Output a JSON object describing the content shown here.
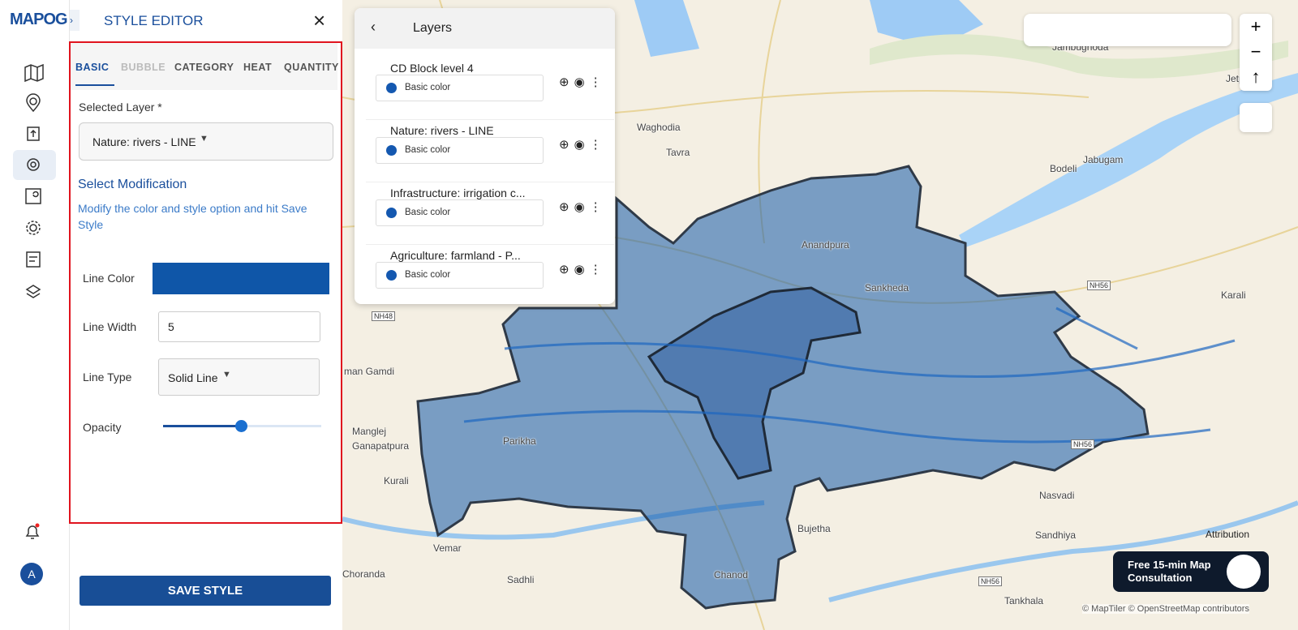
{
  "app": {
    "logo": "MAPOG"
  },
  "editor": {
    "title": "STYLE EDITOR",
    "tabs": [
      "BASIC",
      "BUBBLE",
      "CATEGORY",
      "HEAT",
      "QUANTITY"
    ],
    "selected_layer_label": "Selected Layer *",
    "selected_layer": "Nature: rivers - LINE",
    "section_title": "Select Modification",
    "hint": "Modify the color and style option and hit Save Style",
    "line_color_label": "Line Color",
    "line_width_label": "Line Width",
    "line_width": 5,
    "line_type_label": "Line Type",
    "line_type": "Solid Line",
    "opacity_label": "Opacity",
    "save": "SAVE STYLE"
  },
  "layers": {
    "title": "Layers",
    "items": [
      {
        "name": "CD Block level 4",
        "color_label": "Basic color"
      },
      {
        "name": "Nature: rivers - LINE",
        "color_label": "Basic color"
      },
      {
        "name": "Infrastructure: irrigation c...",
        "color_label": "Basic color"
      },
      {
        "name": "Agriculture: farmland - P...",
        "color_label": "Basic color"
      }
    ]
  },
  "map": {
    "labels": [
      "Waghodia",
      "Tavra",
      "Bodeli",
      "Jabugam",
      "Anandpura",
      "Sankheda",
      "Karali",
      "Jetpur P",
      "Jambughoda",
      "man Gamdi",
      "Manglej",
      "Ganapatpura",
      "Parikha",
      "Kurali",
      "Vemar",
      "Chorandа",
      "Sadhli",
      "Chanod",
      "Bujetha",
      "Nasvadi",
      "Sandhiya",
      "Tankhala"
    ],
    "road_badges": [
      "NH56",
      "NH48",
      "NH56",
      "NH56"
    ],
    "attribution": "Attribution",
    "copyright": "© MapTiler © OpenStreetMap contributors",
    "consultation": "Free 15-min Map Consultation"
  }
}
